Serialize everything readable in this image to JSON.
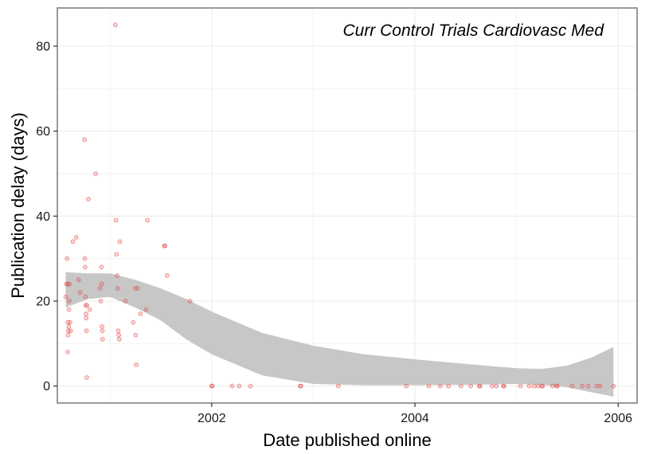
{
  "chart_data": {
    "type": "scatter",
    "annotation": "Curr Control Trials Cardiovasc Med",
    "xlabel": "Date published online",
    "ylabel": "Publication delay (days)",
    "x_ticks": [
      "2002",
      "2004",
      "2006"
    ],
    "y_ticks": [
      0,
      20,
      40,
      60,
      80
    ],
    "xlim": [
      "2000-06-25",
      "2006-03-10"
    ],
    "ylim": [
      -4,
      89
    ],
    "grid": true,
    "point_color": "#e34a4a",
    "band_color": "#c7c7c7",
    "points": [
      {
        "x": "2000-07-25",
        "y": 21
      },
      {
        "x": "2000-07-28",
        "y": 24
      },
      {
        "x": "2000-07-30",
        "y": 30
      },
      {
        "x": "2000-08-01",
        "y": 24
      },
      {
        "x": "2000-08-01",
        "y": 8
      },
      {
        "x": "2000-08-02",
        "y": 15
      },
      {
        "x": "2000-08-03",
        "y": 12
      },
      {
        "x": "2000-08-04",
        "y": 13
      },
      {
        "x": "2000-08-05",
        "y": 14
      },
      {
        "x": "2000-08-06",
        "y": 18
      },
      {
        "x": "2000-08-07",
        "y": 20
      },
      {
        "x": "2000-08-08",
        "y": 24
      },
      {
        "x": "2000-08-10",
        "y": 15
      },
      {
        "x": "2000-08-12",
        "y": 13
      },
      {
        "x": "2000-08-20",
        "y": 34
      },
      {
        "x": "2000-09-01",
        "y": 35
      },
      {
        "x": "2000-09-10",
        "y": 25
      },
      {
        "x": "2000-09-15",
        "y": 22
      },
      {
        "x": "2000-10-01",
        "y": 58
      },
      {
        "x": "2000-10-02",
        "y": 30
      },
      {
        "x": "2000-10-03",
        "y": 28
      },
      {
        "x": "2000-10-04",
        "y": 21
      },
      {
        "x": "2000-10-05",
        "y": 19
      },
      {
        "x": "2000-10-06",
        "y": 17
      },
      {
        "x": "2000-10-07",
        "y": 16
      },
      {
        "x": "2000-10-08",
        "y": 13
      },
      {
        "x": "2000-10-09",
        "y": 2
      },
      {
        "x": "2000-10-10",
        "y": 19
      },
      {
        "x": "2000-10-15",
        "y": 44
      },
      {
        "x": "2000-10-20",
        "y": 18
      },
      {
        "x": "2000-11-10",
        "y": 50
      },
      {
        "x": "2000-11-25",
        "y": 23
      },
      {
        "x": "2000-11-28",
        "y": 20
      },
      {
        "x": "2000-12-01",
        "y": 28
      },
      {
        "x": "2000-12-02",
        "y": 24
      },
      {
        "x": "2000-12-03",
        "y": 14
      },
      {
        "x": "2000-12-04",
        "y": 13
      },
      {
        "x": "2000-12-05",
        "y": 11
      },
      {
        "x": "2001-01-20",
        "y": 85
      },
      {
        "x": "2001-01-22",
        "y": 39
      },
      {
        "x": "2001-01-24",
        "y": 31
      },
      {
        "x": "2001-01-26",
        "y": 26
      },
      {
        "x": "2001-01-28",
        "y": 23
      },
      {
        "x": "2001-01-30",
        "y": 13
      },
      {
        "x": "2001-02-01",
        "y": 12
      },
      {
        "x": "2001-02-03",
        "y": 11
      },
      {
        "x": "2001-02-05",
        "y": 34
      },
      {
        "x": "2001-02-25",
        "y": 20
      },
      {
        "x": "2001-03-25",
        "y": 15
      },
      {
        "x": "2001-04-01",
        "y": 23
      },
      {
        "x": "2001-04-03",
        "y": 12
      },
      {
        "x": "2001-04-05",
        "y": 5
      },
      {
        "x": "2001-04-10",
        "y": 23
      },
      {
        "x": "2001-04-20",
        "y": 17
      },
      {
        "x": "2001-05-10",
        "y": 18
      },
      {
        "x": "2001-05-15",
        "y": 39
      },
      {
        "x": "2001-07-15",
        "y": 33
      },
      {
        "x": "2001-07-17",
        "y": 33
      },
      {
        "x": "2001-07-25",
        "y": 26
      },
      {
        "x": "2001-10-15",
        "y": 20
      },
      {
        "x": "2002-01-01",
        "y": 0
      },
      {
        "x": "2002-01-03",
        "y": 0
      },
      {
        "x": "2002-03-15",
        "y": 0
      },
      {
        "x": "2002-04-10",
        "y": 0
      },
      {
        "x": "2002-05-20",
        "y": 0
      },
      {
        "x": "2002-11-15",
        "y": 0
      },
      {
        "x": "2002-11-17",
        "y": 0
      },
      {
        "x": "2003-04-01",
        "y": 0
      },
      {
        "x": "2003-12-01",
        "y": 0
      },
      {
        "x": "2004-02-20",
        "y": 0
      },
      {
        "x": "2004-04-01",
        "y": 0
      },
      {
        "x": "2004-05-01",
        "y": 0
      },
      {
        "x": "2004-06-15",
        "y": 0
      },
      {
        "x": "2004-07-20",
        "y": 0
      },
      {
        "x": "2004-08-20",
        "y": 0
      },
      {
        "x": "2004-08-22",
        "y": 0
      },
      {
        "x": "2004-10-05",
        "y": 0
      },
      {
        "x": "2004-10-20",
        "y": 0
      },
      {
        "x": "2004-11-15",
        "y": 0
      },
      {
        "x": "2004-11-17",
        "y": 0
      },
      {
        "x": "2005-01-15",
        "y": 0
      },
      {
        "x": "2005-02-15",
        "y": 0
      },
      {
        "x": "2005-03-05",
        "y": 0
      },
      {
        "x": "2005-03-20",
        "y": 0
      },
      {
        "x": "2005-04-01",
        "y": 0
      },
      {
        "x": "2005-04-05",
        "y": 0
      },
      {
        "x": "2005-05-10",
        "y": 0
      },
      {
        "x": "2005-05-25",
        "y": 0
      },
      {
        "x": "2005-05-27",
        "y": 0
      },
      {
        "x": "2005-07-20",
        "y": 0
      },
      {
        "x": "2005-08-25",
        "y": 0
      },
      {
        "x": "2005-09-15",
        "y": 0
      },
      {
        "x": "2005-10-15",
        "y": 0
      },
      {
        "x": "2005-10-28",
        "y": 0
      },
      {
        "x": "2005-12-15",
        "y": 0
      }
    ],
    "smooth_band": [
      {
        "x": "2000-07-25",
        "lower": 18.5,
        "upper": 26.8
      },
      {
        "x": "2000-10-15",
        "lower": 20.5,
        "upper": 26.5
      },
      {
        "x": "2001-01-01",
        "lower": 21.0,
        "upper": 26.5
      },
      {
        "x": "2001-04-01",
        "lower": 18.5,
        "upper": 25.0
      },
      {
        "x": "2001-07-01",
        "lower": 15.5,
        "upper": 23.0
      },
      {
        "x": "2001-10-01",
        "lower": 11.0,
        "upper": 20.5
      },
      {
        "x": "2002-01-01",
        "lower": 7.5,
        "upper": 17.5
      },
      {
        "x": "2002-07-01",
        "lower": 2.5,
        "upper": 12.5
      },
      {
        "x": "2003-01-01",
        "lower": 0.5,
        "upper": 9.5
      },
      {
        "x": "2003-07-01",
        "lower": 0.2,
        "upper": 7.5
      },
      {
        "x": "2004-01-01",
        "lower": 0.2,
        "upper": 6.3
      },
      {
        "x": "2004-07-01",
        "lower": 0.3,
        "upper": 5.2
      },
      {
        "x": "2005-01-01",
        "lower": 0.5,
        "upper": 4.2
      },
      {
        "x": "2005-04-01",
        "lower": 0.3,
        "upper": 4.0
      },
      {
        "x": "2005-07-01",
        "lower": -0.3,
        "upper": 4.8
      },
      {
        "x": "2005-10-01",
        "lower": -1.5,
        "upper": 6.8
      },
      {
        "x": "2005-12-15",
        "lower": -2.5,
        "upper": 9.2
      }
    ]
  }
}
